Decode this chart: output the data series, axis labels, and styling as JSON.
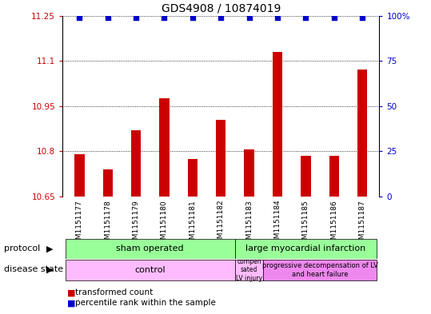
{
  "title": "GDS4908 / 10874019",
  "samples": [
    "GSM1151177",
    "GSM1151178",
    "GSM1151179",
    "GSM1151180",
    "GSM1151181",
    "GSM1151182",
    "GSM1151183",
    "GSM1151184",
    "GSM1151185",
    "GSM1151186",
    "GSM1151187"
  ],
  "bar_values": [
    10.79,
    10.74,
    10.87,
    10.975,
    10.775,
    10.905,
    10.805,
    11.13,
    10.785,
    10.785,
    11.07
  ],
  "percentile_values": [
    99,
    99,
    99,
    99,
    99,
    99,
    99,
    99,
    99,
    99,
    99
  ],
  "bar_color": "#cc0000",
  "percentile_color": "#0000cc",
  "ylim_left": [
    10.65,
    11.25
  ],
  "ylim_right": [
    0,
    100
  ],
  "yticks_left": [
    10.65,
    10.8,
    10.95,
    11.1,
    11.25
  ],
  "yticks_left_labels": [
    "10.65",
    "10.8",
    "10.95",
    "11.1",
    "11.25"
  ],
  "yticks_right": [
    0,
    25,
    50,
    75,
    100
  ],
  "yticks_right_labels": [
    "0",
    "25",
    "50",
    "75",
    "100%"
  ],
  "background_color": "#ffffff",
  "plot_bg_color": "#ffffff",
  "xtick_bg_color": "#cccccc",
  "grid_color": "#000000",
  "label_color_left": "#cc0000",
  "label_color_right": "#0000cc",
  "protocol_sham_color": "#99ff99",
  "protocol_lmi_color": "#99ff99",
  "disease_control_color": "#ffbbff",
  "disease_comp_color": "#ffbbff",
  "disease_prog_color": "#ee88ee",
  "legend_items": [
    {
      "label": "transformed count",
      "color": "#cc0000"
    },
    {
      "label": "percentile rank within the sample",
      "color": "#0000cc"
    }
  ]
}
